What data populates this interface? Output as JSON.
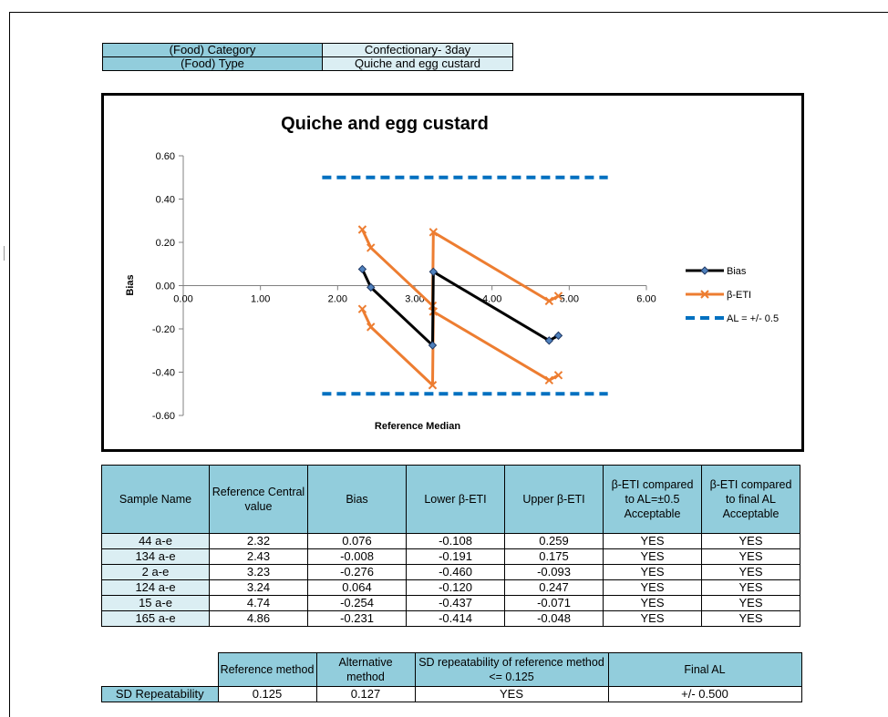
{
  "info": {
    "category_label": "(Food) Category",
    "category_value": "Confectionary- 3day",
    "type_label": "(Food) Type",
    "type_value": "Quiche and egg custard"
  },
  "chart_data": {
    "type": "line",
    "title": "Quiche and egg custard",
    "xlabel": "Reference Median",
    "ylabel": "Bias",
    "xlim": [
      0,
      6
    ],
    "ylim": [
      -0.6,
      0.6
    ],
    "x_ticks": [
      "0.00",
      "1.00",
      "2.00",
      "3.00",
      "4.00",
      "5.00",
      "6.00"
    ],
    "y_ticks": [
      "0.60",
      "0.40",
      "0.20",
      "0.00",
      "-0.20",
      "-0.40",
      "-0.60"
    ],
    "legend_position": "right",
    "series": [
      {
        "name": "Bias",
        "color": "#000000",
        "marker": "diamond",
        "x": [
          2.32,
          2.43,
          3.23,
          3.24,
          4.74,
          4.86
        ],
        "y": [
          0.076,
          -0.008,
          -0.276,
          0.064,
          -0.254,
          -0.231
        ]
      },
      {
        "name": "β-ETI",
        "color": "#ed7d31",
        "marker": "x",
        "x": [
          2.32,
          2.43,
          3.23,
          3.24,
          4.74,
          4.86
        ],
        "y": [
          0.259,
          0.175,
          -0.093,
          0.247,
          -0.071,
          -0.048
        ]
      },
      {
        "name": "",
        "color": "#ed7d31",
        "marker": "x",
        "x": [
          2.32,
          2.43,
          3.23,
          3.24,
          4.74,
          4.86
        ],
        "y": [
          -0.108,
          -0.191,
          -0.46,
          -0.12,
          -0.437,
          -0.414
        ]
      },
      {
        "name": "AL = +/- 0.5",
        "color": "#0070c0",
        "dashed": true,
        "x": [
          1.8,
          5.5
        ],
        "y": [
          0.5,
          0.5
        ]
      },
      {
        "name": "",
        "color": "#0070c0",
        "dashed": true,
        "x": [
          1.8,
          5.5
        ],
        "y": [
          -0.5,
          -0.5
        ]
      }
    ]
  },
  "results": {
    "headers": [
      "Sample Name",
      "Reference Central value",
      "Bias",
      "Lower β-ETI",
      "Upper β-ETI",
      "β-ETI compared to AL=±0.5 Acceptable",
      "β-ETI compared to final AL Acceptable"
    ],
    "rows": [
      [
        "44 a-e",
        "2.32",
        "0.076",
        "-0.108",
        "0.259",
        "YES",
        "YES"
      ],
      [
        "134 a-e",
        "2.43",
        "-0.008",
        "-0.191",
        "0.175",
        "YES",
        "YES"
      ],
      [
        "2 a-e",
        "3.23",
        "-0.276",
        "-0.460",
        "-0.093",
        "YES",
        "YES"
      ],
      [
        "124 a-e",
        "3.24",
        "0.064",
        "-0.120",
        "0.247",
        "YES",
        "YES"
      ],
      [
        "15 a-e",
        "4.74",
        "-0.254",
        "-0.437",
        "-0.071",
        "YES",
        "YES"
      ],
      [
        "165 a-e",
        "4.86",
        "-0.231",
        "-0.414",
        "-0.048",
        "YES",
        "YES"
      ]
    ]
  },
  "sd": {
    "headers": [
      "Reference method",
      "Alternative method",
      "SD repeatability of reference method <= 0.125",
      "Final AL"
    ],
    "row_label": "SD Repeatability",
    "values": [
      "0.125",
      "0.127",
      "YES",
      "+/- 0.500"
    ]
  }
}
